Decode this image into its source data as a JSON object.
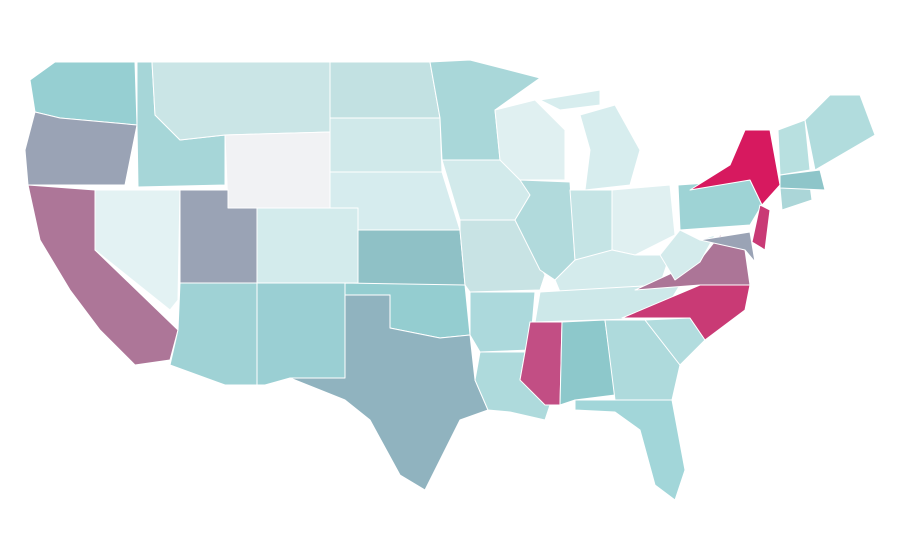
{
  "map": {
    "regions": [
      {
        "color": "#96cfd2"
      },
      {
        "color": "#9aa3b5"
      },
      {
        "color": "#ad7698"
      },
      {
        "color": "#e3f2f3"
      },
      {
        "color": "#a6d6d8"
      },
      {
        "color": "#cae5e6"
      },
      {
        "color": "#f1f2f4"
      },
      {
        "color": "#9aa3b5"
      },
      {
        "color": "#9fd2d5"
      },
      {
        "color": "#d3ebec"
      },
      {
        "color": "#9acfd3"
      },
      {
        "color": "#c2e1e2"
      },
      {
        "color": "#d0e9ea"
      },
      {
        "color": "#d6ecee"
      },
      {
        "color": "#8fc1c6"
      },
      {
        "color": "#94cdd0"
      },
      {
        "color": "#90b3bf"
      },
      {
        "color": "#a9d7d9"
      },
      {
        "color": "#d2eaeb"
      },
      {
        "color": "#c8e3e4"
      },
      {
        "color": "#acd9dc"
      },
      {
        "color": "#aedadc"
      },
      {
        "color": "#e0f0f1"
      },
      {
        "color": "#b1dadc"
      },
      {
        "color": "#d7edee"
      },
      {
        "color": "#c5e4e5"
      },
      {
        "color": "#e0f0f1"
      },
      {
        "color": "#d4ebec"
      },
      {
        "color": "#cde8e9"
      },
      {
        "color": "#c24e84"
      },
      {
        "color": "#8dc8cb"
      },
      {
        "color": "#aedadc"
      },
      {
        "color": "#a2d6d9"
      },
      {
        "color": "#b2dcde"
      },
      {
        "color": "#c93a75"
      },
      {
        "color": "#ac7597"
      },
      {
        "color": "#d4ebec"
      },
      {
        "color": "#9ed3d5"
      },
      {
        "color": "#d7195f"
      },
      {
        "color": "#9aa3b5"
      },
      {
        "color": "#c93a75"
      },
      {
        "color": "#abd6d8"
      },
      {
        "color": "#8ec5c9"
      },
      {
        "color": "#b8e0e0"
      },
      {
        "color": "#b1dcdd"
      }
    ]
  }
}
